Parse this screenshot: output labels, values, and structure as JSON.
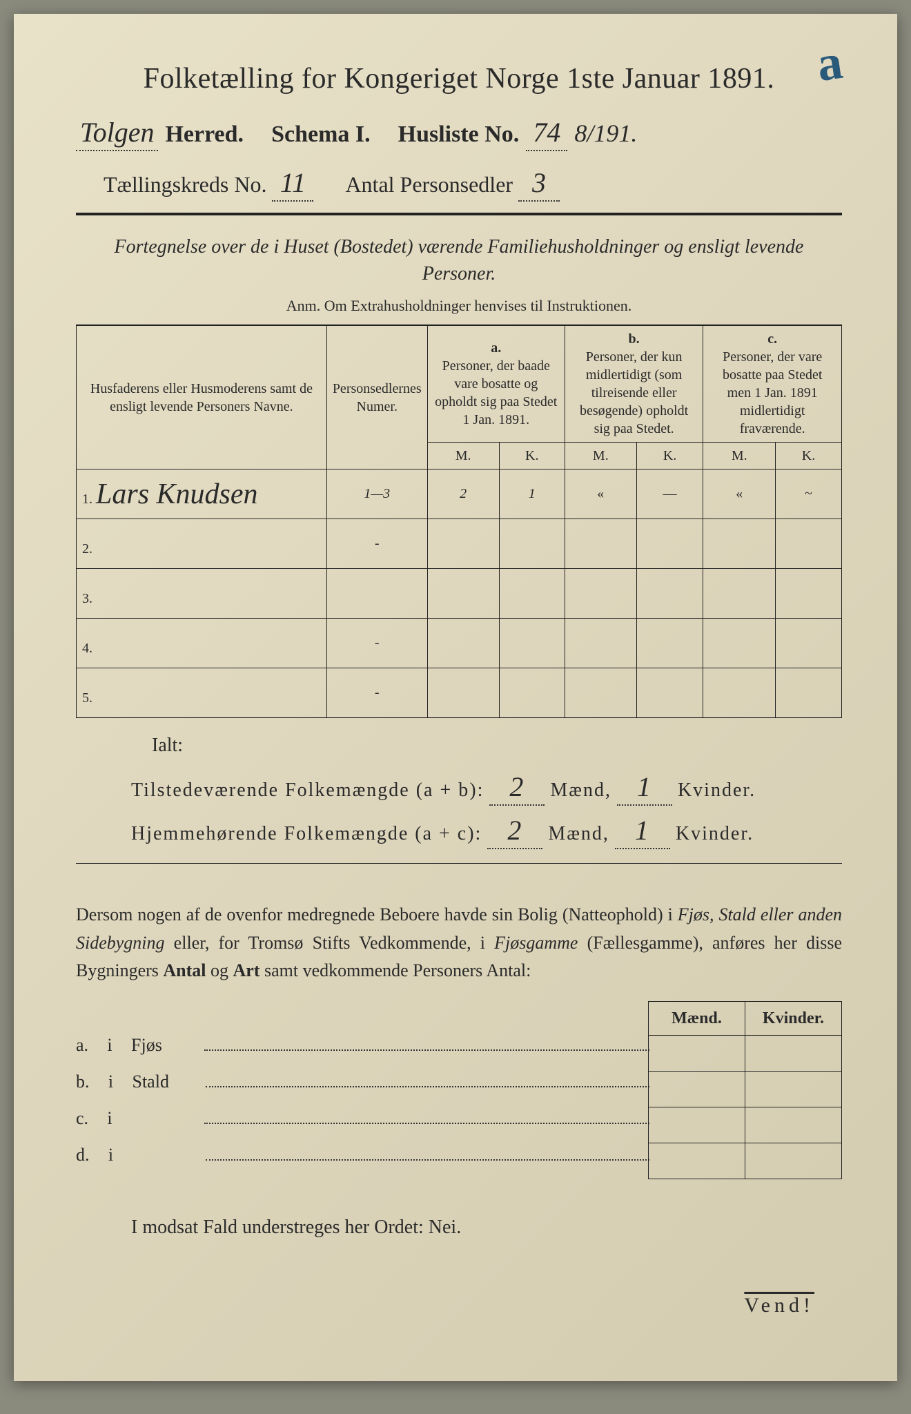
{
  "corner_mark": "a",
  "title": "Folketælling for Kongeriget Norge 1ste Januar 1891.",
  "herred": {
    "value": "Tolgen",
    "label": "Herred.",
    "schema_label": "Schema I.",
    "husliste_label": "Husliste No.",
    "husliste_no": "74",
    "side_fraction": "8/191."
  },
  "kreds": {
    "label": "Tællingskreds No.",
    "no": "11",
    "antal_label": "Antal Personsedler",
    "antal": "3"
  },
  "subtitle": "Fortegnelse over de i Huset (Bostedet) værende Familiehusholdninger og ensligt levende Personer.",
  "anm": "Anm. Om Extrahusholdninger henvises til Instruktionen.",
  "table": {
    "head_names": "Husfaderens eller Husmoderens samt de ensligt levende Personers Navne.",
    "head_num": "Personsedlernes Numer.",
    "head_a_top": "a.",
    "head_a": "Personer, der baade vare bosatte og opholdt sig paa Stedet 1 Jan. 1891.",
    "head_b_top": "b.",
    "head_b": "Personer, der kun midlertidigt (som tilreisende eller besøgende) opholdt sig paa Stedet.",
    "head_c_top": "c.",
    "head_c": "Personer, der vare bosatte paa Stedet men 1 Jan. 1891 midlertidigt fraværende.",
    "m": "M.",
    "k": "K.",
    "rows": [
      {
        "n": "1.",
        "name": "Lars Knudsen",
        "num": "1—3",
        "aM": "2",
        "aK": "1",
        "bM": "«",
        "bK": "—",
        "cM": "«",
        "cK": "~"
      },
      {
        "n": "2.",
        "name": "",
        "num": "-",
        "aM": "",
        "aK": "",
        "bM": "",
        "bK": "",
        "cM": "",
        "cK": ""
      },
      {
        "n": "3.",
        "name": "",
        "num": "",
        "aM": "",
        "aK": "",
        "bM": "",
        "bK": "",
        "cM": "",
        "cK": ""
      },
      {
        "n": "4.",
        "name": "",
        "num": "-",
        "aM": "",
        "aK": "",
        "bM": "",
        "bK": "",
        "cM": "",
        "cK": ""
      },
      {
        "n": "5.",
        "name": "",
        "num": "-",
        "aM": "",
        "aK": "",
        "bM": "",
        "bK": "",
        "cM": "",
        "cK": ""
      }
    ]
  },
  "ialt": "Ialt:",
  "totals": {
    "line1_label": "Tilstedeværende Folkemængde (a + b):",
    "line1_m": "2",
    "line1_k": "1",
    "line2_label": "Hjemmehørende Folkemængde (a + c):",
    "line2_m": "2",
    "line2_k": "1",
    "maend": "Mænd,",
    "kvinder": "Kvinder."
  },
  "dersom": {
    "text1": "Dersom nogen af de ovenfor medregnede Beboere havde sin Bolig (Natteophold) i ",
    "em1": "Fjøs, Stald eller anden Sidebygning",
    "text2": " eller, for Tromsø Stifts Vedkommende, i ",
    "em2": "Fjøsgamme",
    "text3": " (Fællesgamme), anføres her disse Bygningers ",
    "bold1": "Antal",
    "text4": " og ",
    "bold2": "Art",
    "text5": " samt vedkommende Personers Antal:"
  },
  "buildings": {
    "maend": "Mænd.",
    "kvinder": "Kvinder.",
    "rows": [
      {
        "letter": "a.",
        "i": "i",
        "label": "Fjøs"
      },
      {
        "letter": "b.",
        "i": "i",
        "label": "Stald"
      },
      {
        "letter": "c.",
        "i": "i",
        "label": ""
      },
      {
        "letter": "d.",
        "i": "i",
        "label": ""
      }
    ]
  },
  "nei_line": "I modsat Fald understreges her Ordet: Nei.",
  "vend": "Vend!",
  "colors": {
    "paper": "#ded6bc",
    "ink": "#2a2a2a",
    "blue_ink": "#2a5a7a"
  }
}
